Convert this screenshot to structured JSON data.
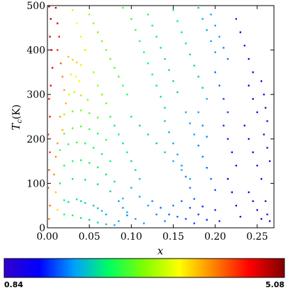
{
  "chart_data": {
    "type": "scatter",
    "title": "",
    "xlabel": "x",
    "ylabel_main": "T",
    "ylabel_sub": "c",
    "ylabel_unit": "(K)",
    "xlim": [
      0,
      0.27
    ],
    "ylim": [
      0,
      500
    ],
    "x_ticks": [
      0.0,
      0.05,
      0.1,
      0.15,
      0.2,
      0.25
    ],
    "x_tick_labels": [
      "0.00",
      "0.05",
      "0.10",
      "0.15",
      "0.20",
      "0.25"
    ],
    "y_ticks": [
      0,
      100,
      200,
      300,
      400,
      500
    ],
    "y_tick_labels": [
      "0",
      "100",
      "200",
      "300",
      "400",
      "500"
    ],
    "grid": false,
    "legend": "none",
    "colorbar": {
      "min": 0.84,
      "max": 5.08,
      "min_label": "0.84",
      "max_label": "5.08",
      "orientation": "horizontal",
      "placement": "bottom",
      "colors": [
        "#3300cc",
        "#0000ff",
        "#00a0ff",
        "#00ff60",
        "#80ff00",
        "#ffff00",
        "#ff8000",
        "#ff0000",
        "#800000"
      ]
    },
    "series": [
      {
        "points": [
          [
            0.002,
            498,
            5.0
          ],
          [
            0.004,
            470,
            4.9
          ],
          [
            0.003,
            430,
            4.8
          ],
          [
            0.005,
            400,
            4.7
          ],
          [
            0.006,
            360,
            4.6
          ],
          [
            0.004,
            320,
            4.6
          ],
          [
            0.002,
            290,
            4.5
          ],
          [
            0.003,
            250,
            4.5
          ],
          [
            0.001,
            210,
            4.4
          ],
          [
            0.003,
            170,
            4.3
          ],
          [
            0.002,
            130,
            4.2
          ],
          [
            0.001,
            90,
            4.2
          ],
          [
            0.003,
            50,
            4.1
          ],
          [
            0.002,
            20,
            4.0
          ],
          [
            0.01,
            495,
            4.8
          ],
          [
            0.012,
            460,
            4.7
          ],
          [
            0.014,
            430,
            4.5
          ],
          [
            0.012,
            400,
            4.4
          ],
          [
            0.016,
            370,
            4.2
          ],
          [
            0.018,
            340,
            4.0
          ],
          [
            0.02,
            310,
            3.9
          ],
          [
            0.022,
            280,
            3.8
          ],
          [
            0.015,
            250,
            3.9
          ],
          [
            0.018,
            220,
            3.8
          ],
          [
            0.012,
            190,
            3.9
          ],
          [
            0.01,
            160,
            4.0
          ],
          [
            0.008,
            120,
            4.0
          ],
          [
            0.01,
            80,
            3.7
          ],
          [
            0.012,
            40,
            3.6
          ],
          [
            0.025,
            385,
            3.8
          ],
          [
            0.03,
            378,
            3.7
          ],
          [
            0.035,
            372,
            3.7
          ],
          [
            0.04,
            366,
            3.6
          ],
          [
            0.028,
            345,
            3.6
          ],
          [
            0.034,
            340,
            3.5
          ],
          [
            0.038,
            330,
            3.4
          ],
          [
            0.026,
            300,
            3.3
          ],
          [
            0.032,
            305,
            3.2
          ],
          [
            0.04,
            298,
            3.1
          ],
          [
            0.048,
            288,
            3.0
          ],
          [
            0.02,
            255,
            3.0
          ],
          [
            0.03,
            262,
            2.9
          ],
          [
            0.04,
            264,
            2.9
          ],
          [
            0.05,
            258,
            2.8
          ],
          [
            0.06,
            248,
            2.8
          ],
          [
            0.02,
            212,
            2.8
          ],
          [
            0.03,
            224,
            2.8
          ],
          [
            0.04,
            228,
            2.7
          ],
          [
            0.05,
            222,
            2.7
          ],
          [
            0.06,
            212,
            2.6
          ],
          [
            0.07,
            198,
            2.6
          ],
          [
            0.015,
            175,
            2.7
          ],
          [
            0.025,
            188,
            2.6
          ],
          [
            0.035,
            192,
            2.6
          ],
          [
            0.045,
            190,
            2.5
          ],
          [
            0.055,
            180,
            2.5
          ],
          [
            0.065,
            166,
            2.4
          ],
          [
            0.075,
            150,
            2.4
          ],
          [
            0.02,
            140,
            2.5
          ],
          [
            0.03,
            150,
            2.5
          ],
          [
            0.04,
            152,
            2.4
          ],
          [
            0.05,
            146,
            2.4
          ],
          [
            0.06,
            136,
            2.3
          ],
          [
            0.07,
            120,
            2.3
          ],
          [
            0.08,
            104,
            2.2
          ],
          [
            0.015,
            100,
            2.4
          ],
          [
            0.03,
            110,
            2.3
          ],
          [
            0.045,
            108,
            2.3
          ],
          [
            0.06,
            98,
            2.2
          ],
          [
            0.075,
            82,
            2.2
          ],
          [
            0.09,
            66,
            2.1
          ],
          [
            0.02,
            62,
            2.4
          ],
          [
            0.025,
            58,
            2.3
          ],
          [
            0.035,
            64,
            2.3
          ],
          [
            0.04,
            60,
            2.2
          ],
          [
            0.045,
            56,
            2.2
          ],
          [
            0.055,
            50,
            2.1
          ],
          [
            0.06,
            44,
            2.1
          ],
          [
            0.065,
            38,
            2.0
          ],
          [
            0.07,
            30,
            2.0
          ],
          [
            0.02,
            30,
            2.5
          ],
          [
            0.03,
            28,
            2.4
          ],
          [
            0.04,
            22,
            2.3
          ],
          [
            0.05,
            18,
            2.2
          ],
          [
            0.06,
            12,
            2.2
          ],
          [
            0.07,
            8,
            2.1
          ],
          [
            0.08,
            6,
            2.0
          ],
          [
            0.05,
            480,
            3.0
          ],
          [
            0.055,
            460,
            3.0
          ],
          [
            0.06,
            440,
            2.9
          ],
          [
            0.065,
            420,
            2.9
          ],
          [
            0.07,
            400,
            2.8
          ],
          [
            0.075,
            380,
            2.8
          ],
          [
            0.08,
            360,
            2.7
          ],
          [
            0.085,
            340,
            2.7
          ],
          [
            0.09,
            320,
            2.6
          ],
          [
            0.095,
            300,
            2.6
          ],
          [
            0.09,
            495,
            2.7
          ],
          [
            0.1,
            470,
            2.6
          ],
          [
            0.105,
            445,
            2.6
          ],
          [
            0.11,
            420,
            2.5
          ],
          [
            0.115,
            395,
            2.5
          ],
          [
            0.12,
            370,
            2.4
          ],
          [
            0.125,
            345,
            2.4
          ],
          [
            0.13,
            320,
            2.3
          ],
          [
            0.135,
            295,
            2.3
          ],
          [
            0.14,
            270,
            2.2
          ],
          [
            0.1,
            250,
            2.3
          ],
          [
            0.11,
            230,
            2.2
          ],
          [
            0.12,
            210,
            2.2
          ],
          [
            0.13,
            190,
            2.1
          ],
          [
            0.14,
            170,
            2.1
          ],
          [
            0.15,
            150,
            2.0
          ],
          [
            0.16,
            130,
            2.0
          ],
          [
            0.17,
            110,
            1.9
          ],
          [
            0.1,
            90,
            2.0
          ],
          [
            0.11,
            70,
            1.9
          ],
          [
            0.12,
            50,
            1.9
          ],
          [
            0.13,
            30,
            1.8
          ],
          [
            0.14,
            15,
            1.8
          ],
          [
            0.095,
            35,
            2.0
          ],
          [
            0.105,
            20,
            1.9
          ],
          [
            0.115,
            10,
            1.9
          ],
          [
            0.15,
            490,
            2.4
          ],
          [
            0.155,
            465,
            2.4
          ],
          [
            0.16,
            440,
            2.3
          ],
          [
            0.165,
            415,
            2.3
          ],
          [
            0.17,
            390,
            2.2
          ],
          [
            0.175,
            365,
            2.2
          ],
          [
            0.18,
            340,
            2.1
          ],
          [
            0.185,
            315,
            2.1
          ],
          [
            0.19,
            290,
            2.0
          ],
          [
            0.165,
            260,
            2.0
          ],
          [
            0.17,
            235,
            1.9
          ],
          [
            0.175,
            210,
            1.9
          ],
          [
            0.18,
            185,
            1.8
          ],
          [
            0.185,
            160,
            1.8
          ],
          [
            0.19,
            135,
            1.7
          ],
          [
            0.195,
            110,
            1.7
          ],
          [
            0.2,
            85,
            1.6
          ],
          [
            0.16,
            60,
            1.7
          ],
          [
            0.17,
            45,
            1.6
          ],
          [
            0.18,
            30,
            1.6
          ],
          [
            0.19,
            18,
            1.5
          ],
          [
            0.15,
            50,
            1.8
          ],
          [
            0.155,
            25,
            1.7
          ],
          [
            0.2,
            40,
            1.5
          ],
          [
            0.205,
            15,
            1.5
          ],
          [
            0.195,
            480,
            2.0
          ],
          [
            0.2,
            455,
            1.9
          ],
          [
            0.205,
            430,
            1.9
          ],
          [
            0.21,
            405,
            1.8
          ],
          [
            0.215,
            380,
            1.8
          ],
          [
            0.2,
            350,
            1.7
          ],
          [
            0.205,
            320,
            1.7
          ],
          [
            0.21,
            290,
            1.6
          ],
          [
            0.215,
            260,
            1.6
          ],
          [
            0.21,
            230,
            1.5
          ],
          [
            0.215,
            200,
            1.5
          ],
          [
            0.22,
            170,
            1.4
          ],
          [
            0.225,
            140,
            1.4
          ],
          [
            0.215,
            110,
            1.3
          ],
          [
            0.22,
            80,
            1.3
          ],
          [
            0.225,
            50,
            1.3
          ],
          [
            0.23,
            25,
            1.3
          ],
          [
            0.225,
            470,
            1.5
          ],
          [
            0.23,
            440,
            1.4
          ],
          [
            0.235,
            410,
            1.4
          ],
          [
            0.24,
            380,
            1.3
          ],
          [
            0.245,
            350,
            1.3
          ],
          [
            0.24,
            320,
            1.2
          ],
          [
            0.245,
            290,
            1.2
          ],
          [
            0.25,
            260,
            1.1
          ],
          [
            0.235,
            230,
            1.2
          ],
          [
            0.24,
            200,
            1.1
          ],
          [
            0.245,
            170,
            1.1
          ],
          [
            0.25,
            140,
            1.0
          ],
          [
            0.255,
            110,
            1.0
          ],
          [
            0.24,
            80,
            1.0
          ],
          [
            0.245,
            60,
            0.95
          ],
          [
            0.25,
            40,
            0.95
          ],
          [
            0.255,
            20,
            0.9
          ],
          [
            0.255,
            330,
            1.0
          ],
          [
            0.258,
            300,
            0.95
          ],
          [
            0.26,
            270,
            0.9
          ],
          [
            0.262,
            240,
            0.9
          ],
          [
            0.258,
            210,
            0.9
          ],
          [
            0.262,
            180,
            0.88
          ],
          [
            0.265,
            150,
            0.86
          ],
          [
            0.26,
            60,
            0.88
          ],
          [
            0.262,
            30,
            0.86
          ],
          [
            0.265,
            15,
            0.84
          ],
          [
            0.075,
            250,
            2.5
          ],
          [
            0.08,
            230,
            2.4
          ],
          [
            0.085,
            210,
            2.4
          ],
          [
            0.09,
            190,
            2.3
          ],
          [
            0.095,
            170,
            2.3
          ],
          [
            0.1,
            150,
            2.2
          ],
          [
            0.105,
            130,
            2.2
          ],
          [
            0.11,
            110,
            2.1
          ],
          [
            0.12,
            480,
            2.5
          ],
          [
            0.125,
            455,
            2.4
          ],
          [
            0.13,
            430,
            2.4
          ],
          [
            0.135,
            405,
            2.3
          ],
          [
            0.14,
            380,
            2.3
          ],
          [
            0.145,
            355,
            2.2
          ],
          [
            0.15,
            330,
            2.2
          ],
          [
            0.155,
            305,
            2.1
          ],
          [
            0.14,
            240,
            2.1
          ],
          [
            0.145,
            215,
            2.0
          ],
          [
            0.15,
            190,
            2.0
          ],
          [
            0.155,
            165,
            1.9
          ],
          [
            0.16,
            140,
            1.9
          ],
          [
            0.165,
            115,
            1.8
          ],
          [
            0.17,
            90,
            1.8
          ],
          [
            0.175,
            65,
            1.7
          ],
          [
            0.18,
            495,
            2.1
          ],
          [
            0.185,
            470,
            2.0
          ],
          [
            0.19,
            445,
            2.0
          ],
          [
            0.195,
            420,
            1.9
          ],
          [
            0.2,
            395,
            1.9
          ],
          [
            0.18,
            260,
            1.9
          ],
          [
            0.185,
            230,
            1.8
          ],
          [
            0.19,
            205,
            1.8
          ],
          [
            0.06,
            320,
            3.0
          ],
          [
            0.065,
            300,
            2.9
          ],
          [
            0.07,
            280,
            2.9
          ],
          [
            0.055,
            350,
            3.1
          ],
          [
            0.045,
            400,
            3.3
          ],
          [
            0.04,
            430,
            3.4
          ],
          [
            0.035,
            460,
            3.5
          ],
          [
            0.03,
            490,
            3.6
          ],
          [
            0.085,
            60,
            1.9
          ],
          [
            0.09,
            45,
            1.9
          ],
          [
            0.095,
            28,
            1.8
          ],
          [
            0.085,
            15,
            2.0
          ],
          [
            0.125,
            60,
            1.8
          ],
          [
            0.135,
            45,
            1.7
          ],
          [
            0.145,
            30,
            1.7
          ],
          [
            0.165,
            20,
            1.6
          ],
          [
            0.175,
            10,
            1.6
          ],
          [
            0.185,
            48,
            1.5
          ]
        ]
      }
    ]
  }
}
